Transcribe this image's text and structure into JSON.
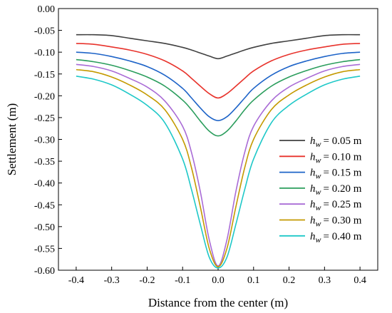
{
  "chart_data": {
    "type": "line",
    "title": "",
    "xlabel": "Distance from the center (m)",
    "ylabel": "Settlement (m)",
    "xlim": [
      -0.45,
      0.45
    ],
    "ylim": [
      -0.6,
      0.0
    ],
    "xticks": [
      "-0.4",
      "-0.3",
      "-0.2",
      "-0.1",
      "0.0",
      "0.1",
      "0.2",
      "0.3",
      "0.4"
    ],
    "yticks": [
      "0.00",
      "-0.05",
      "-0.10",
      "-0.15",
      "-0.20",
      "-0.25",
      "-0.30",
      "-0.35",
      "-0.40",
      "-0.45",
      "-0.50",
      "-0.55",
      "-0.60"
    ],
    "grid": false,
    "legend_position": "right",
    "legend_symbol": "h",
    "legend_subscript": "w",
    "x": [
      -0.4,
      -0.35,
      -0.3,
      -0.25,
      -0.2,
      -0.15,
      -0.1,
      -0.075,
      -0.05,
      -0.025,
      0.0,
      0.025,
      0.05,
      0.075,
      0.1,
      0.15,
      0.2,
      0.25,
      0.3,
      0.35,
      0.4
    ],
    "series": [
      {
        "name": "= 0.05 m",
        "color": "#404040",
        "values": [
          -0.06,
          -0.06,
          -0.062,
          -0.068,
          -0.074,
          -0.08,
          -0.089,
          -0.095,
          -0.102,
          -0.109,
          -0.115,
          -0.109,
          -0.102,
          -0.095,
          -0.089,
          -0.08,
          -0.074,
          -0.068,
          -0.062,
          -0.06,
          -0.06
        ]
      },
      {
        "name": "= 0.10 m",
        "color": "#e8332c",
        "values": [
          -0.08,
          -0.082,
          -0.088,
          -0.095,
          -0.105,
          -0.12,
          -0.143,
          -0.16,
          -0.178,
          -0.195,
          -0.205,
          -0.195,
          -0.178,
          -0.16,
          -0.143,
          -0.12,
          -0.105,
          -0.095,
          -0.088,
          -0.082,
          -0.08
        ]
      },
      {
        "name": "= 0.15 m",
        "color": "#1e64c8",
        "values": [
          -0.1,
          -0.103,
          -0.11,
          -0.12,
          -0.133,
          -0.153,
          -0.183,
          -0.205,
          -0.228,
          -0.248,
          -0.257,
          -0.248,
          -0.228,
          -0.205,
          -0.183,
          -0.153,
          -0.133,
          -0.12,
          -0.11,
          -0.103,
          -0.1
        ]
      },
      {
        "name": "= 0.20 m",
        "color": "#2a9d5c",
        "values": [
          -0.117,
          -0.122,
          -0.13,
          -0.142,
          -0.157,
          -0.178,
          -0.21,
          -0.232,
          -0.258,
          -0.281,
          -0.292,
          -0.281,
          -0.258,
          -0.232,
          -0.21,
          -0.178,
          -0.157,
          -0.142,
          -0.13,
          -0.122,
          -0.117
        ]
      },
      {
        "name": "= 0.25 m",
        "color": "#a96bd6",
        "values": [
          -0.128,
          -0.133,
          -0.143,
          -0.16,
          -0.18,
          -0.212,
          -0.27,
          -0.33,
          -0.42,
          -0.53,
          -0.59,
          -0.53,
          -0.42,
          -0.33,
          -0.27,
          -0.212,
          -0.18,
          -0.16,
          -0.143,
          -0.133,
          -0.128
        ]
      },
      {
        "name": "= 0.30 m",
        "color": "#c49a00",
        "values": [
          -0.14,
          -0.145,
          -0.157,
          -0.175,
          -0.198,
          -0.232,
          -0.3,
          -0.365,
          -0.455,
          -0.55,
          -0.592,
          -0.55,
          -0.455,
          -0.365,
          -0.3,
          -0.232,
          -0.198,
          -0.175,
          -0.157,
          -0.145,
          -0.14
        ]
      },
      {
        "name": "= 0.40 m",
        "color": "#1ec8c8",
        "values": [
          -0.155,
          -0.162,
          -0.175,
          -0.196,
          -0.222,
          -0.262,
          -0.345,
          -0.415,
          -0.495,
          -0.57,
          -0.595,
          -0.57,
          -0.495,
          -0.415,
          -0.345,
          -0.262,
          -0.222,
          -0.196,
          -0.175,
          -0.162,
          -0.155
        ]
      }
    ]
  }
}
